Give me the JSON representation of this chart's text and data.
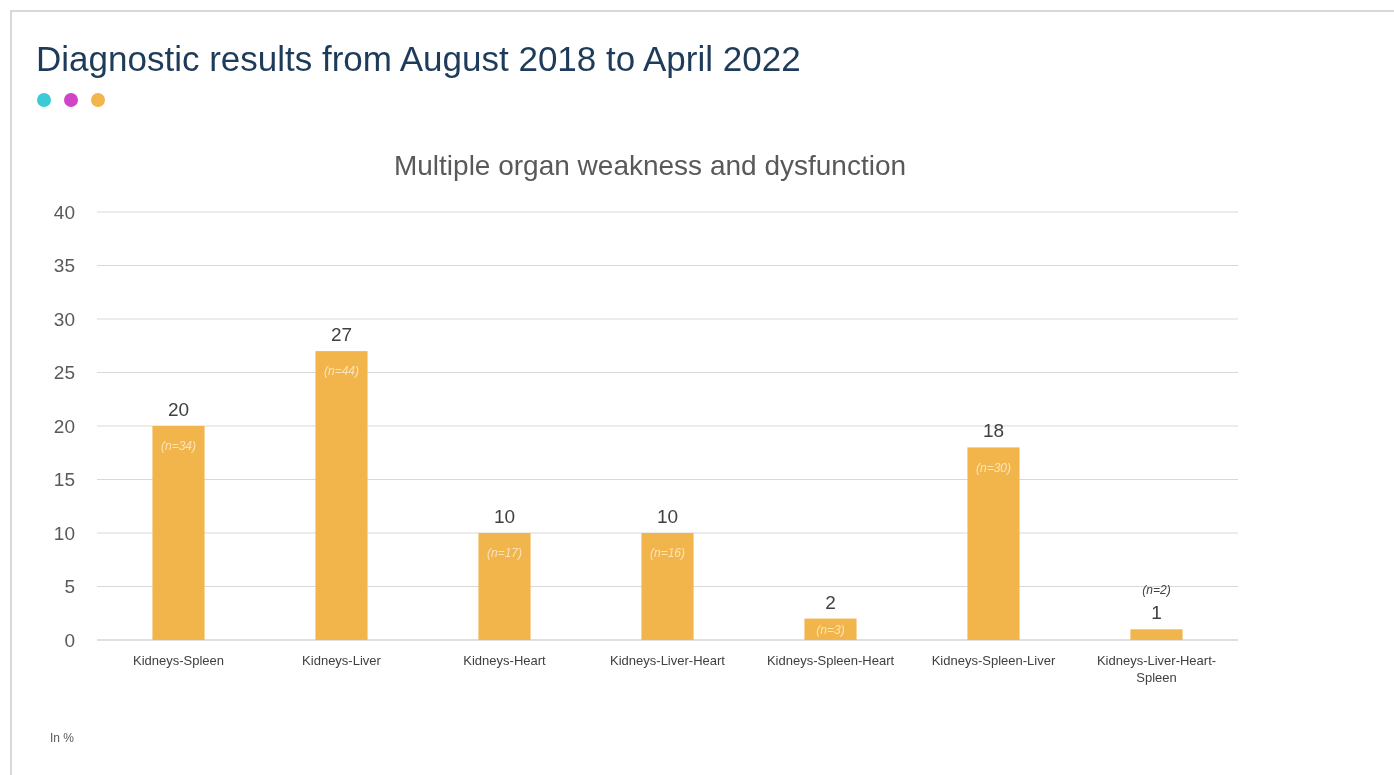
{
  "chart_data": {
    "type": "bar",
    "title": "Diagnostic results from August 2018 to April 2022",
    "subtitle": "Multiple organ weakness and dysfunction",
    "categories": [
      "Kidneys-Spleen",
      "Kidneys-Liver",
      "Kidneys-Heart",
      "Kidneys-Liver-Heart",
      "Kidneys-Spleen-Heart",
      "Kidneys-Spleen-Liver",
      "Kidneys-Liver-Heart-Spleen"
    ],
    "values": [
      20,
      27,
      10,
      10,
      2,
      18,
      1
    ],
    "color": "#f2b54c",
    "data_labels": true,
    "ylim": [
      0,
      40
    ],
    "yticks": [
      0,
      5,
      10,
      15,
      20,
      25,
      30,
      35,
      40
    ],
    "grid": "y",
    "annotations": [
      {
        "text": "(n=34)",
        "x": "Kidneys-Spleen",
        "y": 20
      },
      {
        "text": "(n=44)",
        "x": "Kidneys-Liver",
        "y": 27
      },
      {
        "text": "(n=17)",
        "x": "Kidneys-Heart",
        "y": 10
      },
      {
        "text": "(n=16)",
        "x": "Kidneys-Liver-Heart",
        "y": 10
      },
      {
        "text": "(n=3)",
        "x": "Kidneys-Spleen-Heart",
        "y": 2
      },
      {
        "text": "(n=30)",
        "x": "Kidneys-Spleen-Liver",
        "y": 18
      },
      {
        "text": "(n=2)",
        "x": "Kidneys-Liver-Heart-Spleen",
        "y": 1
      },
      "In %"
    ]
  }
}
